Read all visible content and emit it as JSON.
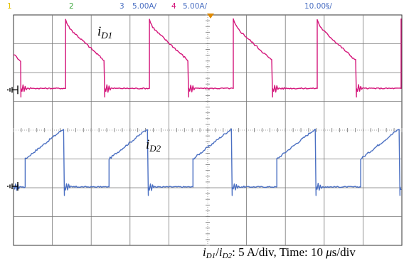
{
  "status_bar": {
    "channels": [
      {
        "number": "1",
        "scale": "",
        "color": "#e6c300"
      },
      {
        "number": "2",
        "scale": "",
        "color": "#3aa63a"
      },
      {
        "number": "3",
        "scale": "5.00A/",
        "color": "#4a6fc2"
      },
      {
        "number": "4",
        "scale": "5.00A/",
        "color": "#d4157a"
      }
    ],
    "timebase": "10.00§/"
  },
  "labels": {
    "trace1": {
      "var": "i",
      "sub": "D1"
    },
    "trace2": {
      "var": "i",
      "sub": "D2"
    }
  },
  "caption": {
    "part1_var": "i",
    "part1_sub": "D1",
    "sep": "/",
    "part2_var": "i",
    "part2_sub": "D2",
    "text1": ": 5 A/div, Time: 10 ",
    "mu": "μ",
    "text2": "s/div"
  },
  "chart_data": {
    "type": "line",
    "title": "",
    "xlabel": "",
    "ylabel": "",
    "grid": true,
    "xdivisions": 10,
    "ydivisions": 8,
    "units_per_div": {
      "x": "10 µs",
      "y": "5 A"
    },
    "xlim": [
      0,
      100
    ],
    "series": [
      {
        "name": "iD1",
        "color": "#4a6fc2",
        "offset_div": -1.95,
        "period_us": 21.6,
        "first_rise_us": 3.0,
        "on_time_us": 10.1,
        "low_level_div": -0.02,
        "on_start_div": 0.95,
        "on_end_div": 2.02,
        "shape": "ramp-up"
      },
      {
        "name": "iD2",
        "color": "#d4157a",
        "offset_div": 1.4,
        "period_us": 21.6,
        "first_rise_us": 13.4,
        "on_time_us": 10.1,
        "low_level_div": 0.05,
        "on_start_div": 2.25,
        "on_end_div": 1.0,
        "shape": "ramp-down"
      }
    ]
  }
}
